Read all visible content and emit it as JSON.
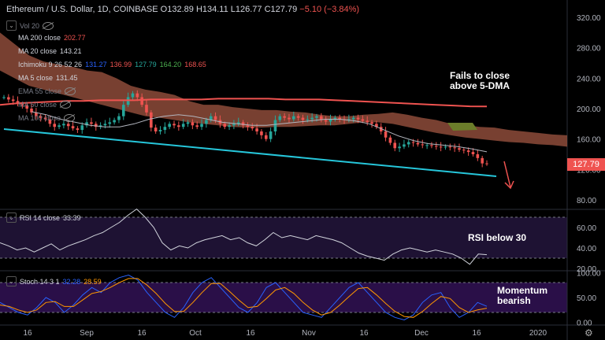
{
  "header": {
    "title": "Ethereum / U.S. Dollar",
    "interval": "1D",
    "exchange": "COINBASE",
    "open": "O132.89",
    "high": "H134.11",
    "low": "L126.77",
    "close": "C127.79",
    "change": "−5.10 (−3.84%)"
  },
  "legends": [
    {
      "label": "Vol 20",
      "values": [],
      "hidden": true
    },
    {
      "label": "MA 200 close",
      "values": [
        {
          "v": "202.77",
          "color": "#ef5350"
        }
      ],
      "hidden": false
    },
    {
      "label": "MA 20 close",
      "values": [
        {
          "v": "143.21",
          "color": "#d1d4dc"
        }
      ],
      "hidden": false
    },
    {
      "label": "Ichimoku 9 26 52 26",
      "values": [
        {
          "v": "131.27",
          "color": "#2962ff"
        },
        {
          "v": "136.99",
          "color": "#ef5350"
        },
        {
          "v": "127.79",
          "color": "#26a69a"
        },
        {
          "v": "164.20",
          "color": "#4caf50"
        },
        {
          "v": "168.65",
          "color": "#ef5350"
        }
      ],
      "hidden": false
    },
    {
      "label": "MA 5 close",
      "values": [
        {
          "v": "131.45",
          "color": "#d1d4dc"
        }
      ],
      "hidden": false
    },
    {
      "label": "EMA 55 close",
      "values": [],
      "hidden": true
    },
    {
      "label": "MA 50 close",
      "values": [],
      "hidden": true
    },
    {
      "label": "MA 100 close",
      "values": [],
      "hidden": true
    }
  ],
  "annotations": {
    "main": "Fails to close above 5-DMA",
    "rsi": "RSI below 30",
    "stoch": "Momentum bearish"
  },
  "current_price": "127.79",
  "rsi_legend": {
    "label": "RSI 14 close",
    "value": "33.39"
  },
  "stoch_legend": {
    "label": "Stoch 14 3 1",
    "k": "32.28",
    "d": "28.59"
  },
  "colors": {
    "up": "#26a69a",
    "down": "#ef5350",
    "cloud": "#8d4b3a",
    "cloud_bull": "#6b7d2a",
    "trendline": "#26c6da",
    "ma200": "#ef5350",
    "rsi_band": "#2a1a3f",
    "stoch_band": "#2c124a",
    "arrow": "#ef5350"
  },
  "chart_data": [
    {
      "type": "line",
      "title": "Ethereum / U.S. Dollar, 1D, COINBASE",
      "ylim": [
        80,
        330
      ],
      "y_ticks": [
        80,
        120,
        160,
        200,
        240,
        280,
        320
      ],
      "x_ticks": [
        "16",
        "Sep",
        "16",
        "Oct",
        "16",
        "Nov",
        "16",
        "Dec",
        "16",
        "2020"
      ],
      "grid": false,
      "series": [
        {
          "name": "Price close",
          "values": [
            215,
            212,
            210,
            206,
            204,
            200,
            195,
            190,
            188,
            186,
            180,
            176,
            178,
            180,
            177,
            174,
            172,
            178,
            182,
            180,
            176,
            178,
            180,
            182,
            185,
            190,
            205,
            215,
            220,
            215,
            205,
            195,
            175,
            170,
            172,
            176,
            180,
            178,
            176,
            180,
            182,
            178,
            176,
            180,
            185,
            190,
            185,
            180,
            176,
            178,
            180,
            182,
            178,
            176,
            174,
            170,
            165,
            160,
            170,
            185,
            190,
            188,
            186,
            190,
            188,
            185,
            186,
            188,
            190,
            185,
            183,
            186,
            188,
            186,
            185,
            186,
            188,
            186,
            184,
            182,
            180,
            176,
            170,
            162,
            155,
            148,
            150,
            153,
            156,
            155,
            153,
            152,
            152,
            151,
            150,
            149,
            150,
            149,
            148,
            146,
            145,
            143,
            140,
            135,
            128,
            127.79
          ]
        },
        {
          "name": "MA 200 close",
          "values": [
            205,
            207,
            208,
            209,
            210,
            210,
            211,
            211,
            211,
            212,
            212,
            212,
            212,
            213,
            213,
            213,
            213,
            212,
            212,
            212,
            211,
            210,
            209,
            208,
            207,
            206,
            205,
            204,
            203,
            202.77
          ]
        },
        {
          "name": "MA 20 close",
          "values": [
            196,
            192,
            186,
            182,
            178,
            176,
            176,
            180,
            186,
            190,
            192,
            190,
            186,
            182,
            180,
            178,
            178,
            180,
            182,
            184,
            186,
            186,
            184,
            180,
            172,
            164,
            158,
            154,
            152,
            150,
            147,
            143.21
          ]
        }
      ]
    },
    {
      "type": "line",
      "title": "RSI 14 close",
      "ylim": [
        20,
        80
      ],
      "y_ticks": [
        20,
        40,
        60
      ],
      "bands": [
        70,
        30
      ],
      "series": [
        {
          "name": "RSI 14 close",
          "values": [
            45,
            42,
            38,
            40,
            36,
            40,
            44,
            38,
            42,
            45,
            48,
            52,
            55,
            60,
            65,
            72,
            78,
            70,
            60,
            45,
            38,
            42,
            40,
            45,
            48,
            50,
            52,
            48,
            50,
            45,
            42,
            48,
            55,
            50,
            52,
            50,
            48,
            52,
            50,
            48,
            45,
            40,
            35,
            32,
            30,
            28,
            34,
            38,
            40,
            38,
            36,
            38,
            36,
            34,
            30,
            24,
            34,
            33.39
          ]
        }
      ]
    },
    {
      "type": "line",
      "title": "Stoch 14 3 1",
      "ylim": [
        0,
        100
      ],
      "y_ticks": [
        0,
        50,
        100
      ],
      "bands": [
        80,
        20
      ],
      "series": [
        {
          "name": "%K",
          "values": [
            40,
            30,
            20,
            15,
            30,
            50,
            40,
            20,
            35,
            55,
            70,
            60,
            80,
            90,
            95,
            85,
            60,
            40,
            20,
            10,
            30,
            60,
            80,
            90,
            70,
            50,
            30,
            20,
            40,
            70,
            80,
            60,
            40,
            20,
            15,
            10,
            30,
            50,
            70,
            80,
            60,
            40,
            20,
            10,
            5,
            15,
            40,
            55,
            60,
            30,
            10,
            20,
            40,
            32.28
          ]
        },
        {
          "name": "%D",
          "values": [
            35,
            32,
            25,
            20,
            25,
            40,
            42,
            32,
            32,
            45,
            58,
            62,
            70,
            80,
            88,
            88,
            75,
            58,
            38,
            22,
            22,
            40,
            60,
            78,
            78,
            62,
            45,
            30,
            32,
            48,
            65,
            70,
            58,
            40,
            25,
            15,
            20,
            35,
            52,
            68,
            70,
            55,
            38,
            22,
            12,
            10,
            22,
            38,
            52,
            48,
            30,
            20,
            25,
            28.59
          ]
        }
      ]
    }
  ]
}
